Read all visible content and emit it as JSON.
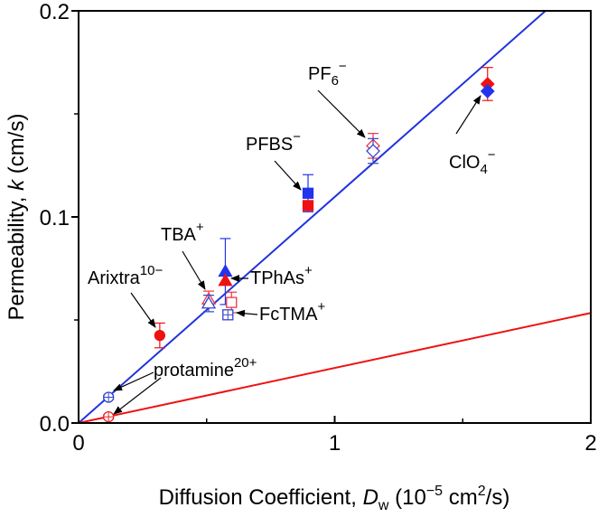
{
  "chart_data": {
    "type": "scatter",
    "title": "",
    "xlabel": "Diffusion Coefficient, D_w (10^-5 cm^2/s)",
    "xlabel_parts": {
      "main": "Diffusion Coefficient, ",
      "var": "D",
      "sub": "w",
      "unit_open": " (10",
      "exp": "−5",
      "unit_mid": " cm",
      "exp2": "2",
      "unit_close": "/s)"
    },
    "ylabel": "Permeability, k (cm/s)",
    "ylabel_parts": {
      "main": "Permeability, ",
      "var": "k",
      "unit": " (cm/s)"
    },
    "xlim": [
      0,
      2
    ],
    "ylim": [
      0,
      0.2
    ],
    "xticks": [
      {
        "v": 0,
        "label": "0"
      },
      {
        "v": 1,
        "label": "1"
      },
      {
        "v": 2,
        "label": "2"
      }
    ],
    "xminor": [
      0.5,
      1.5
    ],
    "yticks": [
      {
        "v": 0,
        "label": "0.0"
      },
      {
        "v": 0.1,
        "label": "0.1"
      },
      {
        "v": 0.2,
        "label": "0.2"
      }
    ],
    "yminor": [
      0.05,
      0.15
    ],
    "grid": false,
    "lines": [
      {
        "name": "blue-fit",
        "color": "#2233dd",
        "slope": 0.1097
      },
      {
        "name": "red-fit",
        "color": "#ee1111",
        "slope": 0.0267
      }
    ],
    "series": [
      {
        "name": "protamine blue",
        "color": "#3344cc",
        "marker": "circle-cross",
        "filled": false,
        "x": 0.117,
        "y": 0.0125,
        "err": 0.001
      },
      {
        "name": "protamine red",
        "color": "#ee2222",
        "marker": "circle-cross",
        "filled": false,
        "x": 0.117,
        "y": 0.003,
        "err": 0.001
      },
      {
        "name": "Arixtra red",
        "color": "#ee1111",
        "marker": "circle",
        "filled": true,
        "x": 0.317,
        "y": 0.0425,
        "err": 0.006
      },
      {
        "name": "TBA red",
        "color": "#ee3344",
        "marker": "triangle",
        "filled": false,
        "x": 0.508,
        "y": 0.06,
        "err": 0.004
      },
      {
        "name": "TBA blue",
        "color": "#3344cc",
        "marker": "triangle",
        "filled": false,
        "x": 0.508,
        "y": 0.058,
        "err": 0.004
      },
      {
        "name": "TPhAs blue",
        "color": "#2233ee",
        "marker": "triangle",
        "filled": true,
        "x": 0.573,
        "y": 0.0735,
        "err": 0.016
      },
      {
        "name": "TPhAs red",
        "color": "#ee1111",
        "marker": "triangle",
        "filled": true,
        "x": 0.573,
        "y": 0.069,
        "err": 0.0
      },
      {
        "name": "FcTMA red",
        "color": "#ee3344",
        "marker": "square",
        "filled": false,
        "x": 0.597,
        "y": 0.0585,
        "err": 0.005
      },
      {
        "name": "FcTMA blue",
        "color": "#3344cc",
        "marker": "square-cross",
        "filled": false,
        "x": 0.583,
        "y": 0.0525,
        "err": 0.002
      },
      {
        "name": "PFBS blue",
        "color": "#2233ee",
        "marker": "square",
        "filled": true,
        "x": 0.896,
        "y": 0.1115,
        "err": 0.009
      },
      {
        "name": "PFBS red",
        "color": "#ee1111",
        "marker": "square",
        "filled": true,
        "x": 0.896,
        "y": 0.1055,
        "err": 0.002
      },
      {
        "name": "PF6 red",
        "color": "#ee3344",
        "marker": "diamond",
        "filled": false,
        "x": 1.15,
        "y": 0.1345,
        "err": 0.006
      },
      {
        "name": "PF6 blue",
        "color": "#3344cc",
        "marker": "diamond",
        "filled": false,
        "x": 1.15,
        "y": 0.132,
        "err": 0.006
      },
      {
        "name": "ClO4 red",
        "color": "#ee1111",
        "marker": "diamond",
        "filled": true,
        "x": 1.597,
        "y": 0.1645,
        "err": 0.008
      },
      {
        "name": "ClO4 blue",
        "color": "#2233ee",
        "marker": "diamond",
        "filled": true,
        "x": 1.597,
        "y": 0.161,
        "err": 0.0
      }
    ],
    "annotations": [
      {
        "text": "PF",
        "sub": "6",
        "sup": "−",
        "at": [
          1.15,
          0.134
        ]
      },
      {
        "text": "PFBS",
        "sub": "",
        "sup": "−",
        "at": [
          0.896,
          0.111
        ]
      },
      {
        "text": "ClO",
        "sub": "4",
        "sup": "−",
        "at": [
          1.597,
          0.161
        ]
      },
      {
        "text": "TBA",
        "sub": "",
        "sup": "+",
        "at": [
          0.508,
          0.059
        ]
      },
      {
        "text": "Arixtra",
        "sub": "",
        "sup": "10−",
        "at": [
          0.317,
          0.0425
        ]
      },
      {
        "text": "TPhAs",
        "sub": "",
        "sup": "+",
        "at": [
          0.573,
          0.069
        ]
      },
      {
        "text": "FcTMA",
        "sub": "",
        "sup": "+",
        "at": [
          0.583,
          0.0525
        ]
      },
      {
        "text": "protamine",
        "sub": "",
        "sup": "20+",
        "at": [
          0.117,
          0.0125
        ]
      }
    ]
  }
}
